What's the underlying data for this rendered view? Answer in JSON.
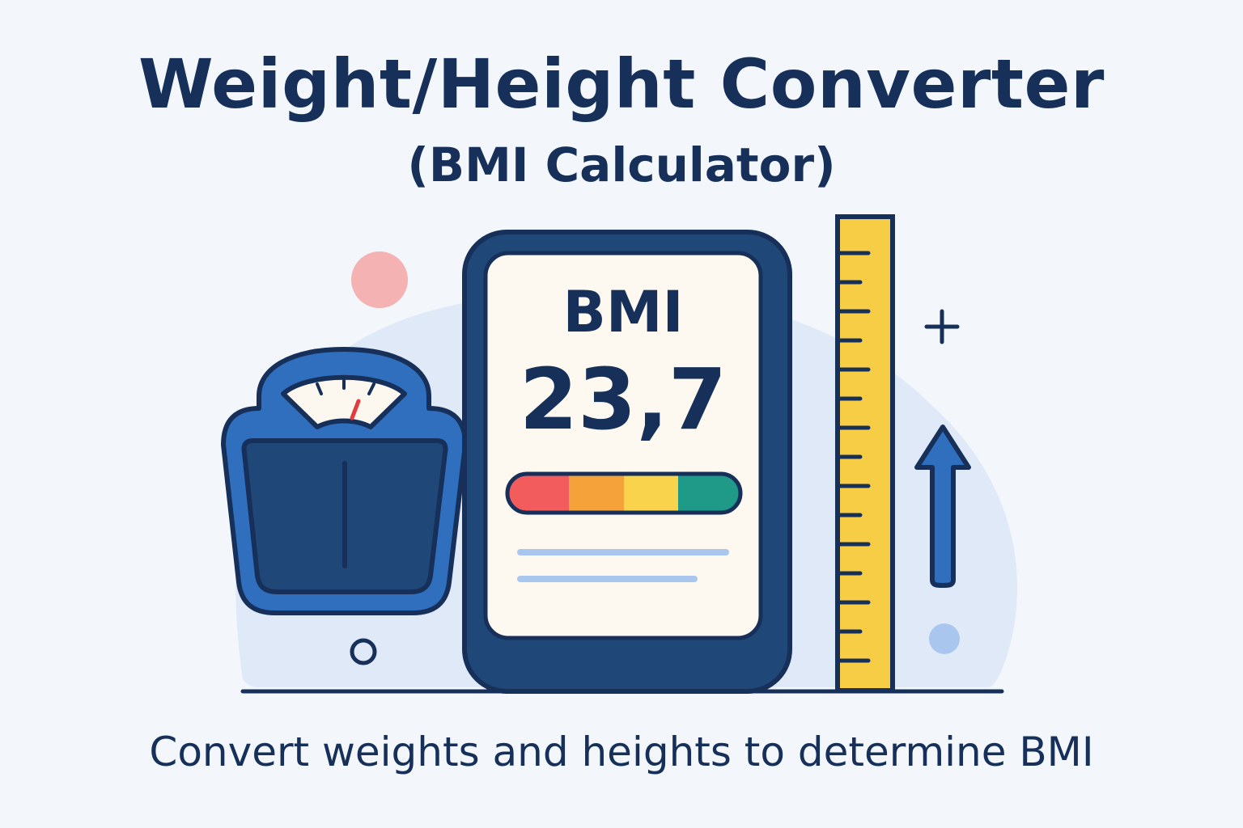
{
  "header": {
    "title": "Weight/Height Converter",
    "subtitle": "(BMI Calculator)"
  },
  "device": {
    "label": "BMI",
    "value": "23,7",
    "scale_colors": [
      "#f25c5c",
      "#f6a23a",
      "#f9d34b",
      "#1f9a88"
    ]
  },
  "icons": {
    "scale": "bathroom-scale-icon",
    "ruler": "ruler-icon",
    "arrow": "arrow-up-icon",
    "plus": "plus-icon"
  },
  "colors": {
    "primary": "#16305a",
    "scale_blue": "#2f6fbd",
    "ruler_yellow": "#f8cd46",
    "background_blob": "#dfe9f8",
    "accent_pink": "#f5b2b2",
    "accent_light_blue": "#a9c7ee"
  },
  "footer": {
    "caption": "Convert weights and heights to determine BMI"
  }
}
